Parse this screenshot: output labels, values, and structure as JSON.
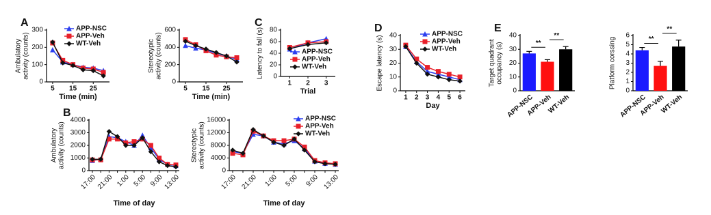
{
  "chart_data": [
    {
      "type": "line",
      "panel": "A",
      "ylabel": [
        "Ambulatory",
        "activity (counts)"
      ],
      "xlabel": "Time (min)",
      "x": [
        5,
        10,
        15,
        20,
        25,
        30
      ],
      "xlim": [
        2,
        33
      ],
      "xticks": [
        5,
        15,
        25
      ],
      "ylim": [
        0,
        300
      ],
      "yticks": [
        0,
        100,
        200,
        300
      ],
      "legend": "upper right",
      "series": [
        {
          "name": "APP-NSC",
          "color": "#2b3ff0",
          "marker": "triangle",
          "values": [
            185,
            115,
            100,
            85,
            80,
            65
          ]
        },
        {
          "name": "APP-Veh",
          "color": "#e8202a",
          "marker": "square",
          "values": [
            225,
            125,
            100,
            80,
            75,
            55
          ]
        },
        {
          "name": "WT-Veh",
          "color": "#111111",
          "marker": "diamond",
          "values": [
            230,
            110,
            95,
            70,
            65,
            35
          ]
        }
      ]
    },
    {
      "type": "line",
      "ylabel": [
        "Stereotypic",
        "activity (counts)"
      ],
      "xlabel": "Time (min)",
      "x": [
        5,
        10,
        15,
        20,
        25,
        30
      ],
      "xlim": [
        2,
        33
      ],
      "xticks": [
        5,
        15,
        25
      ],
      "ylim": [
        0,
        600
      ],
      "yticks": [
        0,
        200,
        400,
        600
      ],
      "series": [
        {
          "name": "APP-NSC",
          "color": "#2b3ff0",
          "marker": "triangle",
          "values": [
            420,
            390,
            370,
            330,
            300,
            260
          ]
        },
        {
          "name": "APP-Veh",
          "color": "#e8202a",
          "marker": "square",
          "values": [
            490,
            430,
            360,
            310,
            290,
            280
          ]
        },
        {
          "name": "WT-Veh",
          "color": "#111111",
          "marker": "diamond",
          "values": [
            470,
            420,
            380,
            340,
            300,
            230
          ]
        }
      ]
    },
    {
      "type": "line",
      "panel": "C",
      "ylabel": [
        "Latency to fall (s)"
      ],
      "xlabel": "Trial",
      "x": [
        1,
        2,
        3
      ],
      "xlim": [
        0.5,
        3.5
      ],
      "xticks": [
        1,
        2,
        3
      ],
      "ylim": [
        0,
        80
      ],
      "yticks": [
        0,
        20,
        40,
        60,
        80
      ],
      "legend": "lower right",
      "series": [
        {
          "name": "APP-NSC",
          "color": "#2b3ff0",
          "marker": "triangle",
          "values": [
            47,
            58,
            65
          ]
        },
        {
          "name": "APP-Veh",
          "color": "#e8202a",
          "marker": "square",
          "values": [
            50,
            58,
            60
          ]
        },
        {
          "name": "WT-Veh",
          "color": "#111111",
          "marker": "diamond",
          "values": [
            48,
            55,
            58
          ]
        }
      ]
    },
    {
      "type": "line",
      "panel": "D",
      "ylabel": [
        "Escape latency (s)"
      ],
      "xlabel": "Day",
      "x": [
        1,
        2,
        3,
        4,
        5,
        6
      ],
      "xlim": [
        0.5,
        6.5
      ],
      "xticks": [
        1,
        2,
        3,
        4,
        5,
        6
      ],
      "ylim": [
        0,
        40
      ],
      "yticks": [
        0,
        10,
        20,
        30,
        40
      ],
      "legend": "upper right",
      "series": [
        {
          "name": "APP-NSC",
          "color": "#2b3ff0",
          "marker": "triangle",
          "values": [
            32,
            21,
            14,
            12,
            10,
            8
          ]
        },
        {
          "name": "APP-Veh",
          "color": "#e8202a",
          "marker": "square",
          "values": [
            33,
            23,
            17,
            14,
            12,
            10
          ]
        },
        {
          "name": "WT-Veh",
          "color": "#111111",
          "marker": "diamond",
          "values": [
            32,
            20,
            12,
            10,
            8,
            7
          ]
        }
      ]
    },
    {
      "type": "bar",
      "panel": "E",
      "ylabel": [
        "Target quadrant",
        "occupancy (s)"
      ],
      "categories": [
        "APP-NSC",
        "APP-Veh",
        "WT-Veh"
      ],
      "values": [
        27,
        21,
        30
      ],
      "errors": [
        1.5,
        1.5,
        2
      ],
      "colors": [
        "#1a1aff",
        "#ff1010",
        "#000000"
      ],
      "ylim": [
        0,
        40
      ],
      "yticks": [
        0,
        10,
        20,
        30,
        40
      ],
      "annotations": [
        "**",
        "**"
      ]
    },
    {
      "type": "bar",
      "ylabel": [
        "Platform corssing"
      ],
      "categories": [
        "APP-NSC",
        "APP-Veh",
        "WT-Veh"
      ],
      "values": [
        4.4,
        2.7,
        4.8
      ],
      "errors": [
        0.3,
        0.5,
        0.7
      ],
      "colors": [
        "#1a1aff",
        "#ff1010",
        "#000000"
      ],
      "ylim": [
        0,
        6
      ],
      "yticks": [
        0,
        1,
        2,
        3,
        4,
        5,
        6
      ],
      "annotations": [
        "**",
        "**"
      ]
    },
    {
      "type": "line",
      "panel": "B",
      "ylabel": [
        "Ambulatory",
        "activity (counts)"
      ],
      "xlabel": "Time of day",
      "categories": [
        "17:00",
        null,
        "21:00",
        null,
        "1:00",
        null,
        "5:00",
        null,
        "9:00",
        null,
        "13:00"
      ],
      "ylim": [
        0,
        4000
      ],
      "yticks": [
        0,
        1000,
        2000,
        3000,
        4000
      ],
      "series": [
        {
          "name": "APP-NSC",
          "color": "#2b3ff0",
          "marker": "triangle",
          "values": [
            800,
            900,
            2700,
            2600,
            2300,
            2000,
            2800,
            1800,
            900,
            500,
            400
          ]
        },
        {
          "name": "APP-Veh",
          "color": "#e8202a",
          "marker": "square",
          "values": [
            850,
            850,
            2500,
            2500,
            2200,
            2300,
            2500,
            2000,
            1000,
            500,
            450
          ]
        },
        {
          "name": "WT-Veh",
          "color": "#111111",
          "marker": "diamond",
          "values": [
            900,
            900,
            3100,
            2700,
            2000,
            2000,
            2600,
            1500,
            700,
            400,
            300
          ]
        }
      ]
    },
    {
      "type": "line",
      "ylabel": [
        "Stereotypic",
        "activity (counts)"
      ],
      "xlabel": "Time of day",
      "categories": [
        "17:00",
        null,
        "21:00",
        null,
        "1:00",
        null,
        "5:00",
        null,
        "9:00",
        null,
        "13:00"
      ],
      "ylim": [
        0,
        16000
      ],
      "yticks": [
        0,
        4000,
        8000,
        12000,
        16000
      ],
      "legend": "upper right",
      "series": [
        {
          "name": "APP-NSC",
          "color": "#2b3ff0",
          "marker": "triangle",
          "values": [
            6000,
            5500,
            11500,
            11000,
            9000,
            8500,
            9500,
            7000,
            3000,
            2300,
            2000
          ]
        },
        {
          "name": "APP-Veh",
          "color": "#e8202a",
          "marker": "square",
          "values": [
            5500,
            5000,
            12500,
            11000,
            9500,
            9500,
            10000,
            7500,
            3200,
            2500,
            2200
          ]
        },
        {
          "name": "WT-Veh",
          "color": "#111111",
          "marker": "diamond",
          "values": [
            6500,
            5500,
            13000,
            11000,
            9000,
            8000,
            10000,
            6500,
            2800,
            2200,
            2000
          ]
        }
      ]
    }
  ]
}
